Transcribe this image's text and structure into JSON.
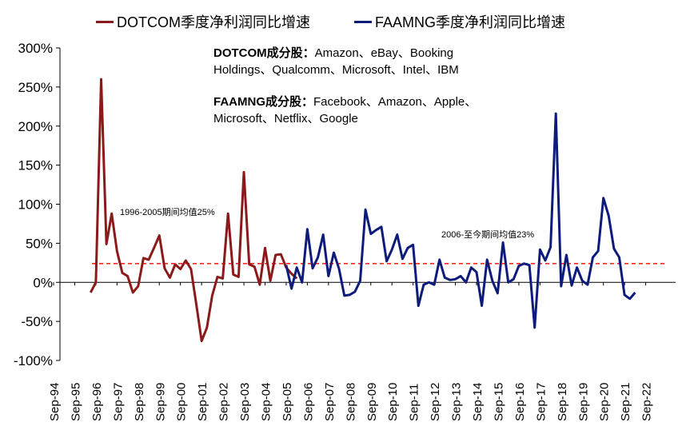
{
  "legend": {
    "dotcom": "DOTCOM季度净利润同比增速",
    "faamng": "FAAMNG季度净利润同比增速"
  },
  "notes": {
    "dotcom_title": "DOTCOM成分股：",
    "dotcom_line1": "Amazon、eBay、Booking",
    "dotcom_line2": "Holdings、Qualcomm、Microsoft、Intel、IBM",
    "faamng_title": "FAAMNG成分股：",
    "faamng_line1": "Facebook、Amazon、Apple、",
    "faamng_line2": "Microsoft、Netflix、Google"
  },
  "chart_data": {
    "type": "line",
    "xlabel": "",
    "ylabel": "",
    "ylim": [
      -100,
      300
    ],
    "y_unit": "%",
    "y_ticks": [
      "300%",
      "250%",
      "200%",
      "150%",
      "100%",
      "50%",
      "0%",
      "-50%",
      "-100%"
    ],
    "x_ticks": [
      "Sep-94",
      "Sep-95",
      "Sep-96",
      "Sep-97",
      "Sep-98",
      "Sep-99",
      "Sep-00",
      "Sep-01",
      "Sep-02",
      "Sep-03",
      "Sep-04",
      "Sep-05",
      "Sep-06",
      "Sep-07",
      "Sep-08",
      "Sep-09",
      "Sep-10",
      "Sep-11",
      "Sep-12",
      "Sep-13",
      "Sep-14",
      "Sep-15",
      "Sep-16",
      "Sep-17",
      "Sep-18",
      "Sep-19",
      "Sep-20",
      "Sep-21",
      "Sep-22"
    ],
    "x_start": "Sep-94",
    "x_step": "quarter",
    "series": [
      {
        "name": "DOTCOM季度净利润同比增速",
        "color": "#8B1A1A",
        "start": "Jun-96",
        "values": [
          -13,
          0,
          260,
          49,
          88,
          40,
          12,
          8,
          -13,
          -5,
          31,
          29,
          44,
          60,
          18,
          6,
          23,
          17,
          28,
          17,
          -28,
          -75,
          -58,
          -17,
          7,
          5,
          88,
          10,
          7,
          141,
          23,
          20,
          -3,
          44,
          2,
          35,
          36,
          19,
          11,
          5
        ]
      },
      {
        "name": "FAAMNG季度净利润同比增速",
        "color": "#0D1B7A",
        "start": "Sep-05",
        "values": [
          22,
          -8,
          19,
          0,
          68,
          18,
          32,
          61,
          8,
          38,
          17,
          -17,
          -16,
          -12,
          2,
          93,
          62,
          67,
          71,
          27,
          42,
          61,
          30,
          44,
          48,
          -30,
          -3,
          0,
          -3,
          29,
          6,
          3,
          4,
          8,
          0,
          19,
          13,
          -30,
          29,
          2,
          -14,
          51,
          0,
          4,
          21,
          24,
          22,
          -58,
          42,
          28,
          45,
          216,
          -5,
          35,
          -4,
          19,
          2,
          -3,
          32,
          40,
          108,
          85,
          43,
          32,
          -16,
          -21,
          -13
        ]
      }
    ],
    "reference_lines": [
      {
        "value": 24,
        "color": "#FF0000",
        "style": "dashed"
      }
    ],
    "annotations": [
      "1996-2005期间均值25%",
      "2006-至今期间均值23%"
    ],
    "grid": false,
    "legend_position": "top"
  }
}
